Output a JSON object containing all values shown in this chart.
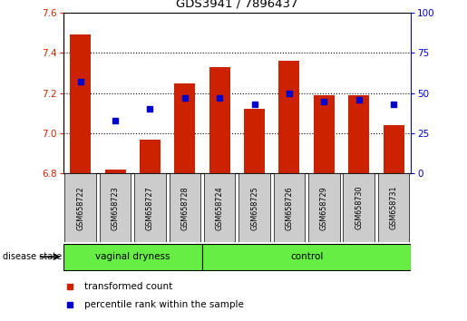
{
  "title": "GDS3941 / 7896437",
  "samples": [
    "GSM658722",
    "GSM658723",
    "GSM658727",
    "GSM658728",
    "GSM658724",
    "GSM658725",
    "GSM658726",
    "GSM658729",
    "GSM658730",
    "GSM658731"
  ],
  "bar_values": [
    7.49,
    6.82,
    6.97,
    7.25,
    7.33,
    7.12,
    7.36,
    7.19,
    7.19,
    7.04
  ],
  "percentile_values": [
    57,
    33,
    40,
    47,
    47,
    43,
    50,
    45,
    46,
    43
  ],
  "ymin": 6.8,
  "ymax": 7.6,
  "yticks_left": [
    6.8,
    7.0,
    7.2,
    7.4,
    7.6
  ],
  "right_yticks": [
    0,
    25,
    50,
    75,
    100
  ],
  "grid_vals": [
    7.0,
    7.2,
    7.4
  ],
  "bar_color": "#cc2200",
  "percentile_color": "#0000cc",
  "sample_box_color": "#cccccc",
  "n_vaginal": 4,
  "n_control": 6,
  "vaginal_label": "vaginal dryness",
  "control_label": "control",
  "disease_state_label": "disease state",
  "legend_bar_label": "transformed count",
  "legend_pct_label": "percentile rank within the sample",
  "group_color": "#66ee44",
  "bg_color": "#ffffff"
}
